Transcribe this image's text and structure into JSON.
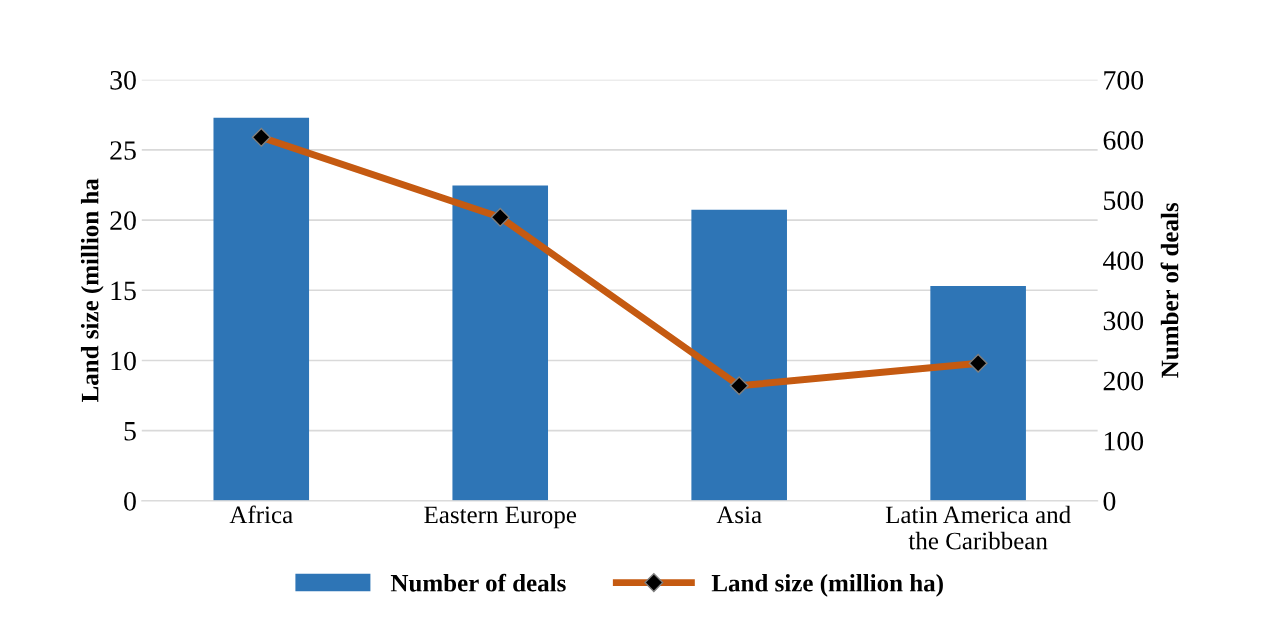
{
  "chart_data": {
    "type": "bar",
    "categories": [
      "Africa",
      "Eastern Europe",
      "Asia",
      "Latin America and\nthe Caribbean"
    ],
    "ylabel": "Land size (million ha",
    "y2label": "Number of deals",
    "ylim": [
      0,
      30
    ],
    "yticks": [
      0,
      5,
      10,
      15,
      20,
      25,
      30
    ],
    "y2lim": [
      0,
      700
    ],
    "y2ticks": [
      0,
      100,
      200,
      300,
      400,
      500,
      600,
      700
    ],
    "grid": "y",
    "legend": "bottom",
    "series": [
      {
        "name": "Number of deals",
        "axis": "y2",
        "color": "#2e75b6",
        "values": [
          637,
          524,
          484,
          357
        ]
      },
      {
        "name": "Land size (million ha)",
        "type": "line",
        "axis": "y",
        "color": "#c55a11",
        "marker": "diamond",
        "values": [
          25.9,
          20.2,
          8.2,
          9.8
        ]
      }
    ]
  }
}
